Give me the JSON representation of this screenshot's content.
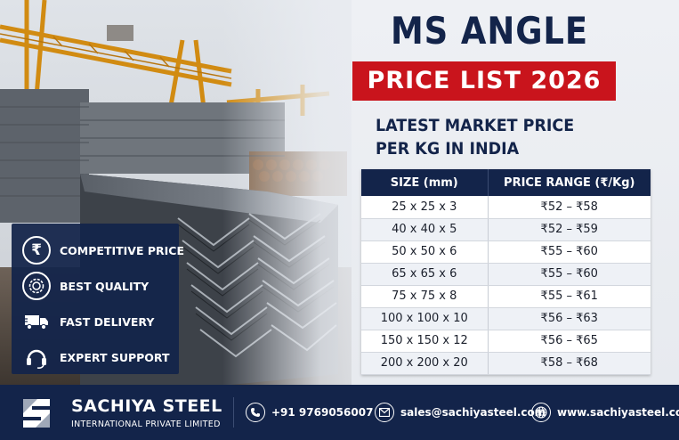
{
  "header": {
    "title": "MS ANGLE",
    "banner": "PRICE LIST 2026",
    "subtitle_line1": "LATEST MARKET PRICE",
    "subtitle_line2": "PER KG IN INDIA"
  },
  "table": {
    "headers": [
      "SIZE (mm)",
      "PRICE RANGE (₹/Kg)"
    ],
    "rows": [
      [
        "25 x 25 x 3",
        "₹52 – ₹58"
      ],
      [
        "40 x 40 x 5",
        "₹52 – ₹59"
      ],
      [
        "50 x 50 x 6",
        "₹55 – ₹60"
      ],
      [
        "65 x 65 x 6",
        "₹55 – ₹60"
      ],
      [
        "75 x 75 x 8",
        "₹55 – ₹61"
      ],
      [
        "100 x 100 x 10",
        "₹56 – ₹63"
      ],
      [
        "150 x 150 x 12",
        "₹56 – ₹65"
      ],
      [
        "200 x 200 x 20",
        "₹58 – ₹68"
      ]
    ]
  },
  "features": [
    {
      "label": "COMPETITIVE PRICE",
      "icon": "rupee-icon"
    },
    {
      "label": "BEST QUALITY",
      "icon": "quality-badge-icon"
    },
    {
      "label": "FAST DELIVERY",
      "icon": "delivery-truck-icon"
    },
    {
      "label": "EXPERT SUPPORT",
      "icon": "headset-icon"
    }
  ],
  "footer": {
    "company": "SACHIYA STEEL",
    "company_sub": "INTERNATIONAL PRIVATE LIMITED",
    "phone": "+91 9769056007",
    "email": "sales@sachiyasteel.com",
    "website": "www.sachiyasteel.com"
  },
  "colors": {
    "navy": "#13244a",
    "red": "#c9141c",
    "light_bg": "#e9ecf1"
  }
}
